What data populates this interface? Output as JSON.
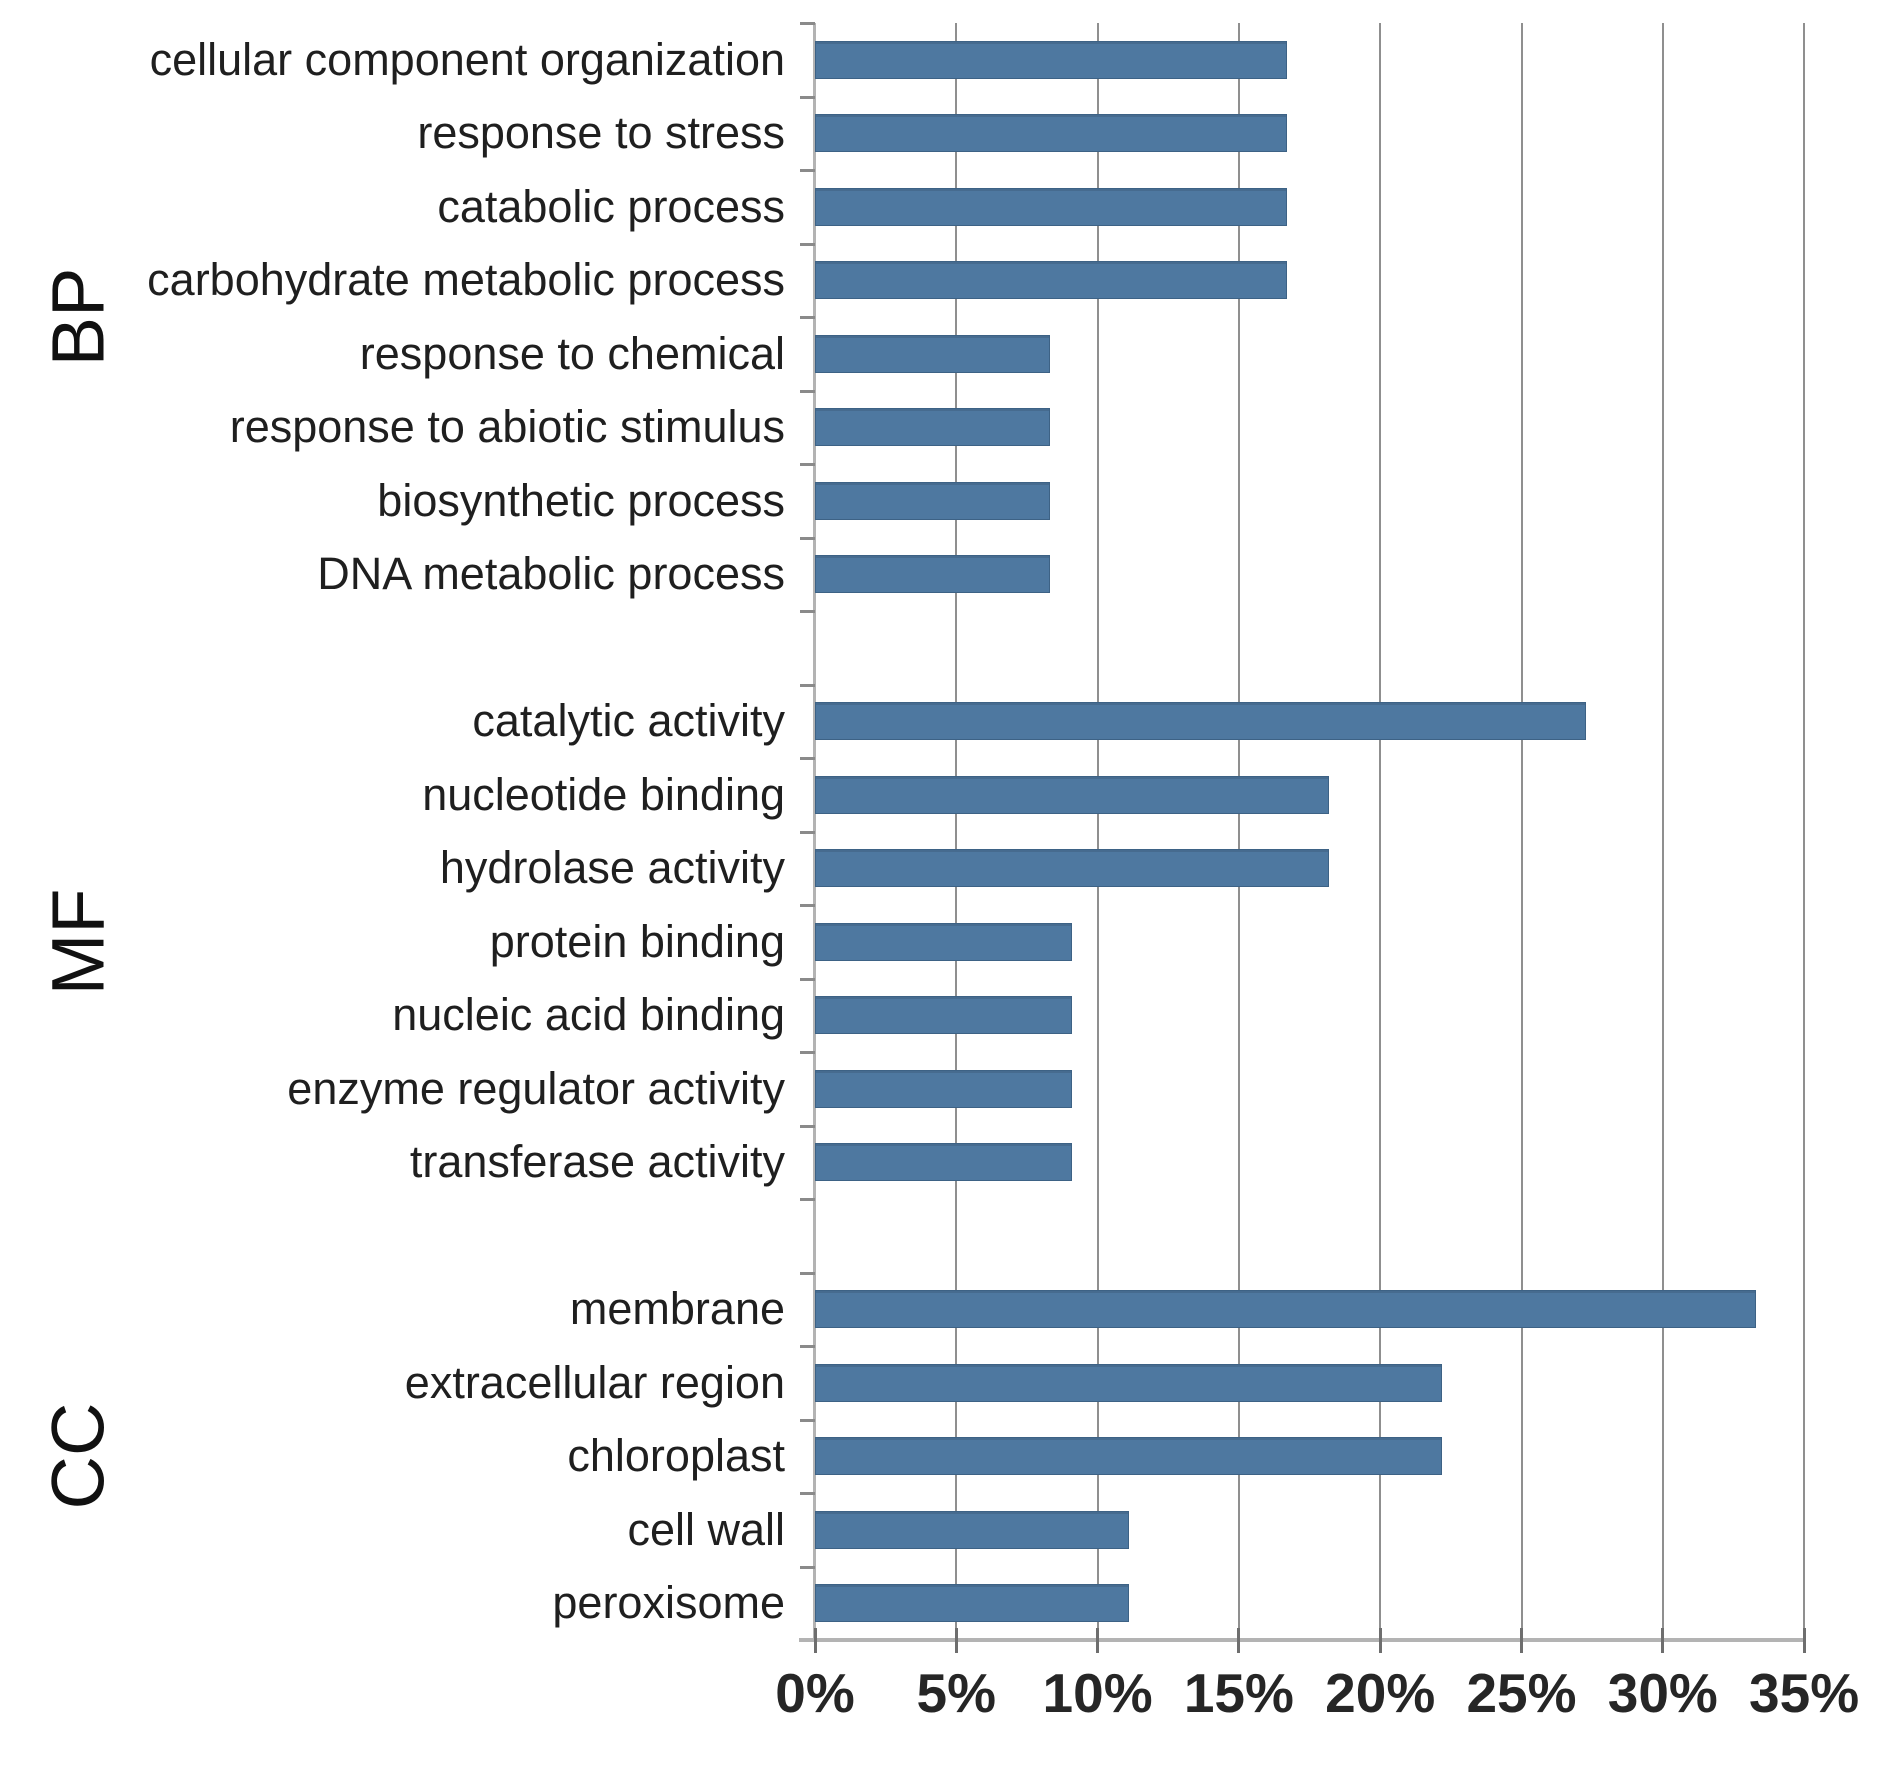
{
  "figure": {
    "background": "#ffffff",
    "bar_color": "#4e78a0",
    "bar_border_color": "#3d6285",
    "grid_color": "#8f8f8f",
    "axis_line_color": "#b3b3b3",
    "tick_color": "#6e6e6e",
    "text_color": "#1f1f1f"
  },
  "chart_data": {
    "type": "bar",
    "orientation": "horizontal",
    "title": "",
    "xlabel": "",
    "ylabel": "",
    "value_unit": "%",
    "xlim": [
      0,
      35
    ],
    "x_tick_interval": 5,
    "x_tick_labels": [
      "0%",
      "5%",
      "10%",
      "15%",
      "20%",
      "25%",
      "30%",
      "35%"
    ],
    "grid": true,
    "legend": false,
    "groups": [
      {
        "name": "BP",
        "items": [
          {
            "label": "cellular component organization",
            "value": 16.7
          },
          {
            "label": "response to stress",
            "value": 16.7
          },
          {
            "label": "catabolic process",
            "value": 16.7
          },
          {
            "label": "carbohydrate metabolic process",
            "value": 16.7
          },
          {
            "label": "response to chemical",
            "value": 8.3
          },
          {
            "label": "response to abiotic stimulus",
            "value": 8.3
          },
          {
            "label": "biosynthetic process",
            "value": 8.3
          },
          {
            "label": "DNA metabolic process",
            "value": 8.3
          }
        ]
      },
      {
        "name": "MF",
        "items": [
          {
            "label": "catalytic activity",
            "value": 27.3
          },
          {
            "label": "nucleotide binding",
            "value": 18.2
          },
          {
            "label": "hydrolase activity",
            "value": 18.2
          },
          {
            "label": "protein binding",
            "value": 9.1
          },
          {
            "label": "nucleic acid binding",
            "value": 9.1
          },
          {
            "label": "enzyme regulator activity",
            "value": 9.1
          },
          {
            "label": "transferase activity",
            "value": 9.1
          }
        ]
      },
      {
        "name": "CC",
        "items": [
          {
            "label": "membrane",
            "value": 33.3
          },
          {
            "label": "extracellular region",
            "value": 22.2
          },
          {
            "label": "chloroplast",
            "value": 22.2
          },
          {
            "label": "cell wall",
            "value": 11.1
          },
          {
            "label": "peroxisome",
            "value": 11.1
          }
        ]
      }
    ]
  }
}
